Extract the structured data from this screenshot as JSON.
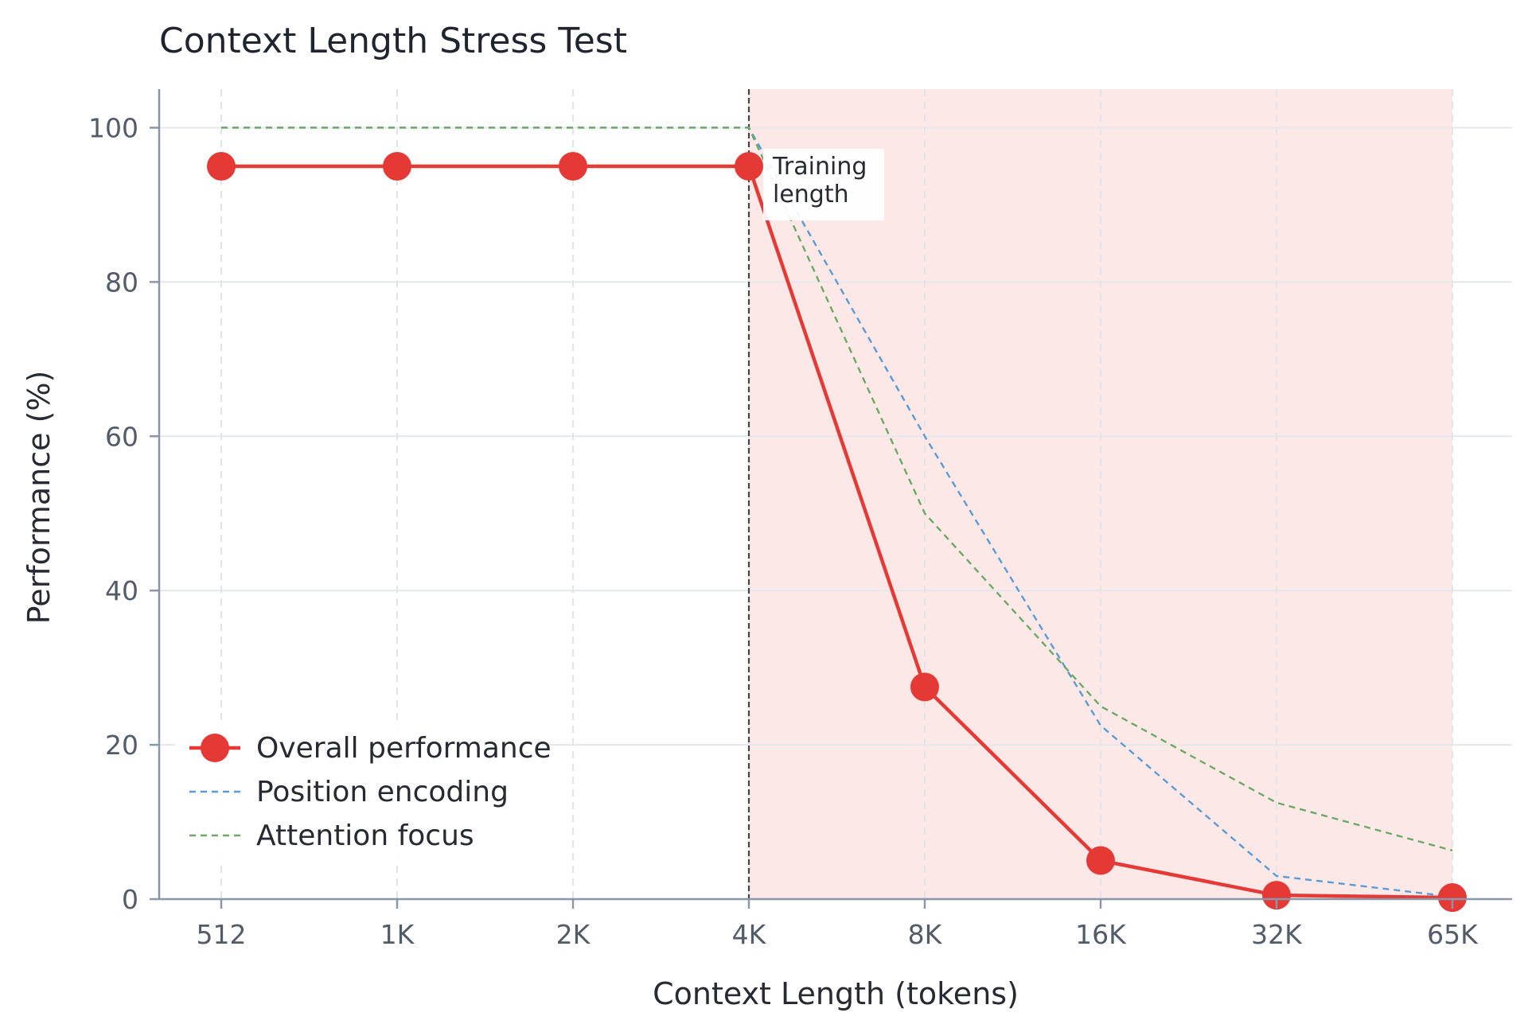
{
  "chart_data": {
    "type": "line",
    "title": "Context Length Stress Test",
    "xlabel": "Context Length (tokens)",
    "ylabel": "Performance (%)",
    "categories": [
      "512",
      "1K",
      "2K",
      "4K",
      "8K",
      "16K",
      "32K",
      "65K"
    ],
    "ylim": [
      0,
      105
    ],
    "yticks": [
      "0",
      "20",
      "40",
      "60",
      "80",
      "100"
    ],
    "grid": true,
    "legend_position": "bottom-left",
    "series": [
      {
        "name": "Overall performance",
        "values": [
          95,
          95,
          95,
          95,
          27.5,
          5,
          0.5,
          0.2
        ],
        "color": "#e53935",
        "style": "solid-markers"
      },
      {
        "name": "Position encoding",
        "values": [
          100,
          100,
          100,
          100,
          60,
          22.5,
          3,
          0.3
        ],
        "color": "#5b9bd5",
        "style": "dashed"
      },
      {
        "name": "Attention focus",
        "values": [
          100,
          100,
          100,
          100,
          50,
          25,
          12.5,
          6.3
        ],
        "color": "#6aaa64",
        "style": "dashed"
      }
    ],
    "shaded_region": {
      "from": "4K",
      "to": "65K",
      "color": "#fde8e8"
    },
    "annotations": [
      {
        "at": "4K",
        "text_lines": [
          "Training",
          "length"
        ]
      }
    ]
  }
}
